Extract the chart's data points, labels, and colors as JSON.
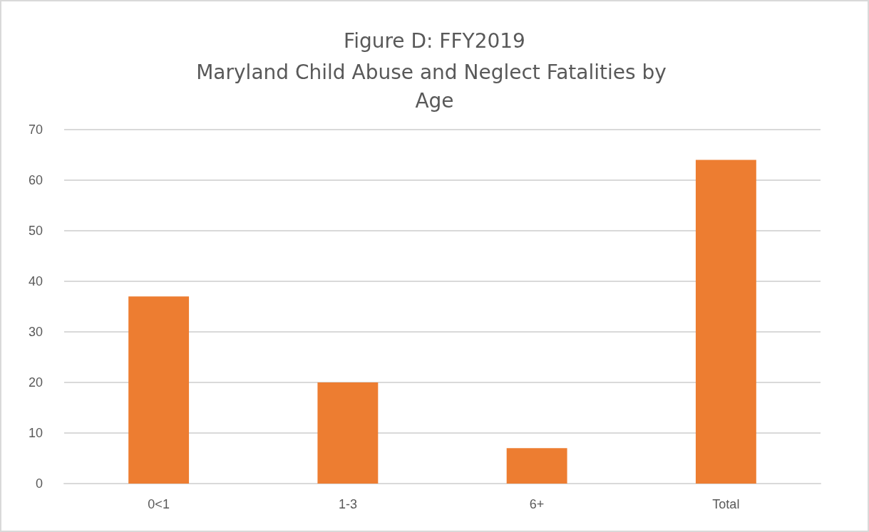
{
  "chart_data": {
    "type": "bar",
    "title": "Figure D: FFY2019",
    "subtitle": "Maryland Child Abuse and Neglect Fatalities by Age",
    "categories": [
      "0<1",
      "1-3",
      "6+",
      "Total"
    ],
    "values": [
      37,
      20,
      7,
      64
    ],
    "color": "#ed7d31",
    "ylim": [
      0,
      70
    ],
    "yticks": [
      0,
      10,
      20,
      30,
      40,
      50,
      60,
      70
    ],
    "grid": "y"
  }
}
